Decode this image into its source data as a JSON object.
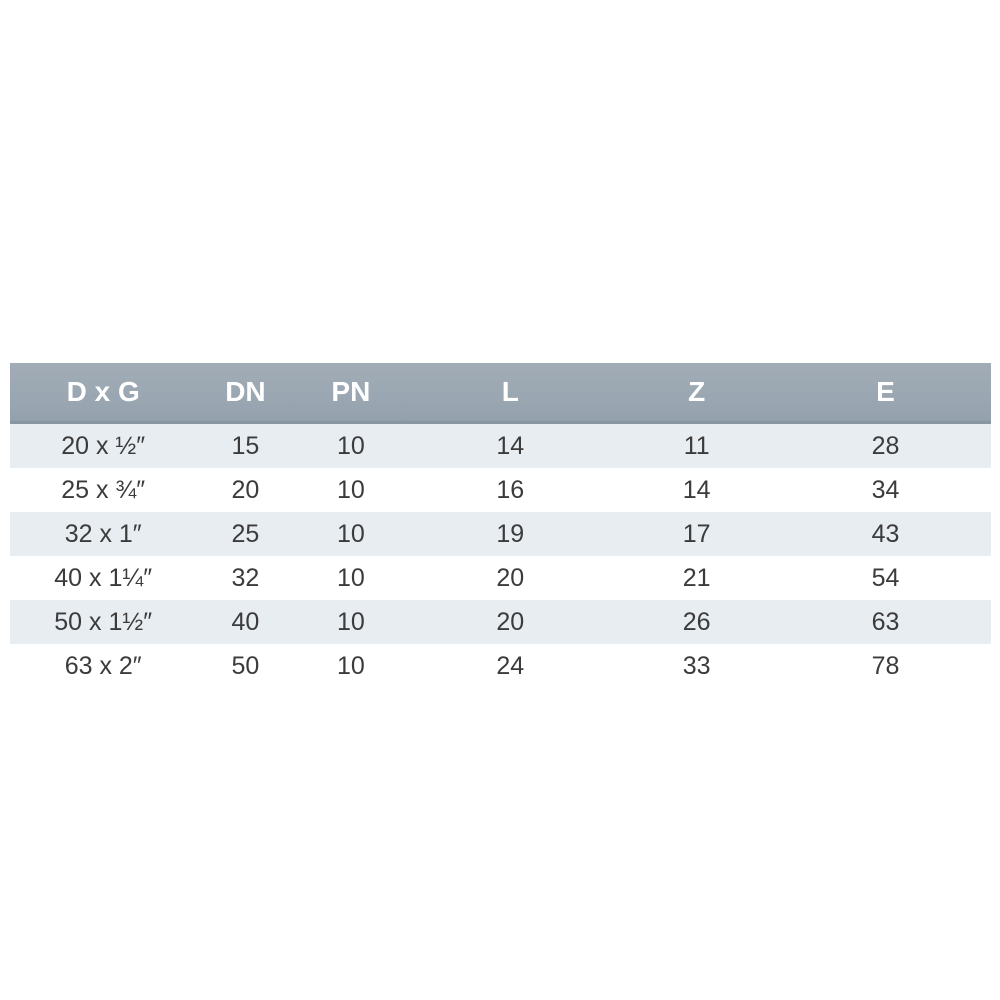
{
  "table": {
    "title": "pipe-fitting-dimension-table",
    "columns": [
      "D x G",
      "DN",
      "PN",
      "L",
      "Z",
      "E"
    ],
    "rows": [
      [
        "20 x ½″",
        "15",
        "10",
        "14",
        "11",
        "28"
      ],
      [
        "25 x ¾″",
        "20",
        "10",
        "16",
        "14",
        "34"
      ],
      [
        "32 x 1″",
        "25",
        "10",
        "19",
        "17",
        "43"
      ],
      [
        "40 x 1¼″",
        "32",
        "10",
        "20",
        "21",
        "54"
      ],
      [
        "50 x 1½″",
        "40",
        "10",
        "20",
        "26",
        "63"
      ],
      [
        "63 x 2″",
        "50",
        "10",
        "24",
        "33",
        "78"
      ]
    ],
    "colors": {
      "header_bg_top": "#a1acb6",
      "header_bg_bottom": "#92a0ac",
      "header_border": "#8995a2",
      "header_text": "#ffffff",
      "row_alt_bg": "#e8edf2",
      "row_bg": "#ffffff",
      "cell_text": "#3b3b3b",
      "page_bg": "#ffffff"
    }
  }
}
